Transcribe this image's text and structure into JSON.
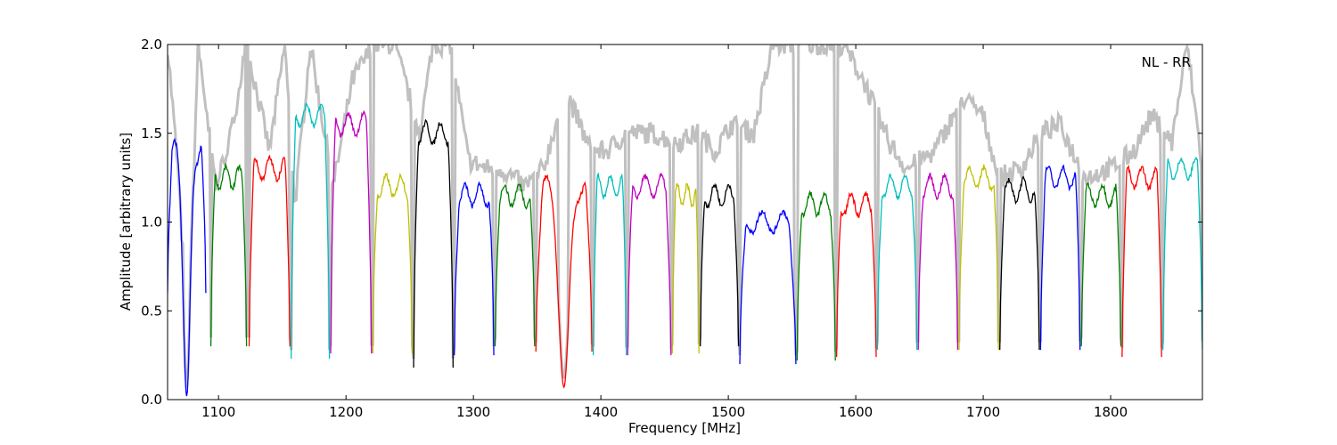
{
  "chart_data": {
    "type": "line",
    "title": "",
    "annotation": "NL - RR",
    "xlabel": "Frequency [MHz]",
    "ylabel": "Amplitude [arbitrary units]",
    "xlim": [
      1060,
      1872
    ],
    "ylim": [
      0.0,
      2.0
    ],
    "xticks": [
      1100,
      1200,
      1300,
      1400,
      1500,
      1600,
      1700,
      1800
    ],
    "yticks": [
      0.0,
      0.5,
      1.0,
      1.5,
      2.0
    ],
    "ytick_labels": [
      "0.0",
      "0.5",
      "1.0",
      "1.5",
      "2.0"
    ],
    "grid": false,
    "background_color": "#c0c0c0",
    "band_colors": [
      "#0000ff",
      "#008000",
      "#ff0000",
      "#00bfbf",
      "#bf00bf",
      "#bfbf00",
      "#000000"
    ],
    "background_envelope": [
      [
        1060,
        2.0
      ],
      [
        1068,
        1.3
      ],
      [
        1076,
        0.35
      ],
      [
        1084,
        2.0
      ],
      [
        1098,
        1.2
      ],
      [
        1110,
        1.5
      ],
      [
        1122,
        2.0
      ],
      [
        1140,
        1.4
      ],
      [
        1152,
        2.0
      ],
      [
        1160,
        1.1
      ],
      [
        1172,
        2.0
      ],
      [
        1190,
        1.2
      ],
      [
        1205,
        1.8
      ],
      [
        1222,
        2.0
      ],
      [
        1238,
        2.0
      ],
      [
        1258,
        1.5
      ],
      [
        1268,
        2.0
      ],
      [
        1282,
        2.0
      ],
      [
        1296,
        1.35
      ],
      [
        1310,
        1.3
      ],
      [
        1322,
        1.3
      ],
      [
        1340,
        1.2
      ],
      [
        1355,
        1.3
      ],
      [
        1372,
        1.75
      ],
      [
        1392,
        1.4
      ],
      [
        1405,
        1.4
      ],
      [
        1420,
        1.5
      ],
      [
        1440,
        1.5
      ],
      [
        1460,
        1.45
      ],
      [
        1476,
        1.5
      ],
      [
        1490,
        1.4
      ],
      [
        1502,
        1.55
      ],
      [
        1520,
        1.5
      ],
      [
        1535,
        2.0
      ],
      [
        1555,
        2.0
      ],
      [
        1572,
        2.0
      ],
      [
        1590,
        2.0
      ],
      [
        1606,
        1.8
      ],
      [
        1626,
        1.45
      ],
      [
        1640,
        1.3
      ],
      [
        1662,
        1.4
      ],
      [
        1684,
        1.7
      ],
      [
        1700,
        1.6
      ],
      [
        1712,
        1.25
      ],
      [
        1730,
        1.3
      ],
      [
        1745,
        1.5
      ],
      [
        1760,
        1.55
      ],
      [
        1780,
        1.25
      ],
      [
        1800,
        1.3
      ],
      [
        1818,
        1.4
      ],
      [
        1832,
        1.6
      ],
      [
        1848,
        1.45
      ],
      [
        1860,
        2.0
      ],
      [
        1872,
        1.3
      ]
    ],
    "bands": [
      {
        "start": 1060,
        "end": 1090,
        "level": 1.4,
        "min_edge": 0.6,
        "dip": 0.02,
        "color_index": 0
      },
      {
        "start": 1094,
        "end": 1122,
        "level": 1.25,
        "min_edge": 0.3,
        "color_index": 1
      },
      {
        "start": 1124,
        "end": 1156,
        "level": 1.3,
        "min_edge": 0.3,
        "color_index": 2
      },
      {
        "start": 1157,
        "end": 1187,
        "level": 1.6,
        "min_edge": 0.23,
        "color_index": 3
      },
      {
        "start": 1188,
        "end": 1220,
        "level": 1.55,
        "min_edge": 0.26,
        "color_index": 4
      },
      {
        "start": 1221,
        "end": 1252,
        "level": 1.2,
        "min_edge": 0.26,
        "color_index": 5
      },
      {
        "start": 1253,
        "end": 1284,
        "level": 1.5,
        "min_edge": 0.18,
        "color_index": 6
      },
      {
        "start": 1285,
        "end": 1316,
        "level": 1.15,
        "min_edge": 0.25,
        "color_index": 0
      },
      {
        "start": 1317,
        "end": 1348,
        "level": 1.15,
        "min_edge": 0.3,
        "color_index": 1
      },
      {
        "start": 1349,
        "end": 1393,
        "level": 1.2,
        "min_edge": 0.27,
        "dip": 0.07,
        "color_index": 2
      },
      {
        "start": 1394,
        "end": 1420,
        "level": 1.2,
        "min_edge": 0.25,
        "color_index": 3
      },
      {
        "start": 1421,
        "end": 1455,
        "level": 1.2,
        "min_edge": 0.25,
        "color_index": 4
      },
      {
        "start": 1456,
        "end": 1477,
        "level": 1.15,
        "min_edge": 0.26,
        "color_index": 5
      },
      {
        "start": 1478,
        "end": 1508,
        "level": 1.15,
        "min_edge": 0.3,
        "color_index": 6
      },
      {
        "start": 1509,
        "end": 1553,
        "level": 1.0,
        "min_edge": 0.2,
        "color_index": 0
      },
      {
        "start": 1554,
        "end": 1584,
        "level": 1.1,
        "min_edge": 0.22,
        "color_index": 1
      },
      {
        "start": 1585,
        "end": 1616,
        "level": 1.1,
        "min_edge": 0.24,
        "color_index": 2
      },
      {
        "start": 1617,
        "end": 1648,
        "level": 1.2,
        "min_edge": 0.28,
        "color_index": 3
      },
      {
        "start": 1649,
        "end": 1680,
        "level": 1.2,
        "min_edge": 0.28,
        "color_index": 4
      },
      {
        "start": 1681,
        "end": 1712,
        "level": 1.25,
        "min_edge": 0.28,
        "color_index": 5
      },
      {
        "start": 1713,
        "end": 1744,
        "level": 1.18,
        "min_edge": 0.28,
        "color_index": 6
      },
      {
        "start": 1745,
        "end": 1776,
        "level": 1.25,
        "min_edge": 0.28,
        "color_index": 0
      },
      {
        "start": 1777,
        "end": 1808,
        "level": 1.15,
        "min_edge": 0.3,
        "color_index": 1
      },
      {
        "start": 1809,
        "end": 1840,
        "level": 1.25,
        "min_edge": 0.24,
        "color_index": 2
      },
      {
        "start": 1841,
        "end": 1872,
        "level": 1.3,
        "min_edge": 0.28,
        "color_index": 3
      }
    ]
  }
}
